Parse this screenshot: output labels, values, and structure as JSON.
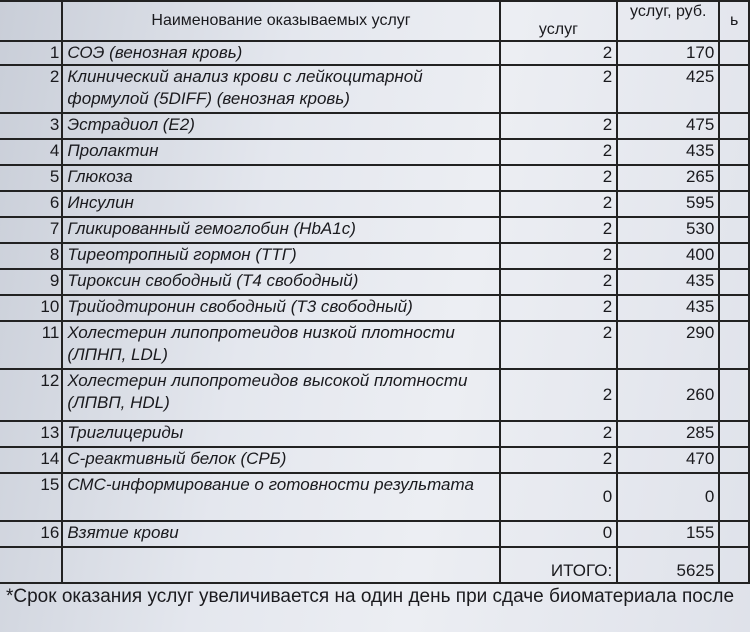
{
  "header": {
    "name": "Наименование оказываемых услуг",
    "qty": "услуг",
    "price": "услуг, руб.",
    "extra": "ь"
  },
  "rows": [
    {
      "n": "1",
      "name": "СОЭ (венозная кровь)",
      "qty": "2",
      "price": "170"
    },
    {
      "n": "2",
      "name": "Клинический анализ крови с лейкоцитарной формулой (5DIFF) (венозная кровь)",
      "qty": "2",
      "price": "425"
    },
    {
      "n": "3",
      "name": "Эстрадиол (Е2)",
      "qty": "2",
      "price": "475"
    },
    {
      "n": "4",
      "name": "Пролактин",
      "qty": "2",
      "price": "435"
    },
    {
      "n": "5",
      "name": "Глюкоза",
      "qty": "2",
      "price": "265"
    },
    {
      "n": "6",
      "name": "Инсулин",
      "qty": "2",
      "price": "595"
    },
    {
      "n": "7",
      "name": "Гликированный гемоглобин (HbA1c)",
      "qty": "2",
      "price": "530"
    },
    {
      "n": "8",
      "name": "Тиреотропный гормон (ТТГ)",
      "qty": "2",
      "price": "400"
    },
    {
      "n": "9",
      "name": "Тироксин свободный (Т4 свободный)",
      "qty": "2",
      "price": "435"
    },
    {
      "n": "10",
      "name": "Трийодтиронин свободный (Т3 свободный)",
      "qty": "2",
      "price": "435"
    },
    {
      "n": "11",
      "name": "Холестерин липопротеидов низкой плотности (ЛПНП, LDL)",
      "qty": "2",
      "price": "290"
    },
    {
      "n": "12",
      "name": "Холестерин липопротеидов высокой плотности (ЛПВП, HDL)",
      "qty": "2",
      "price": "260"
    },
    {
      "n": "13",
      "name": "Триглицериды",
      "qty": "2",
      "price": "285"
    },
    {
      "n": "14",
      "name": "С-реактивный белок (СРБ)",
      "qty": "2",
      "price": "470"
    },
    {
      "n": "15",
      "name": "СМС-информирование о готовности результата",
      "qty": "0",
      "price": "0"
    },
    {
      "n": "16",
      "name": "Взятие крови",
      "qty": "0",
      "price": "155"
    }
  ],
  "total": {
    "label": "ИТОГО:",
    "value": "5625"
  },
  "footnote": "*Срок оказания услуг увеличивается на один день при сдаче биоматериала после"
}
